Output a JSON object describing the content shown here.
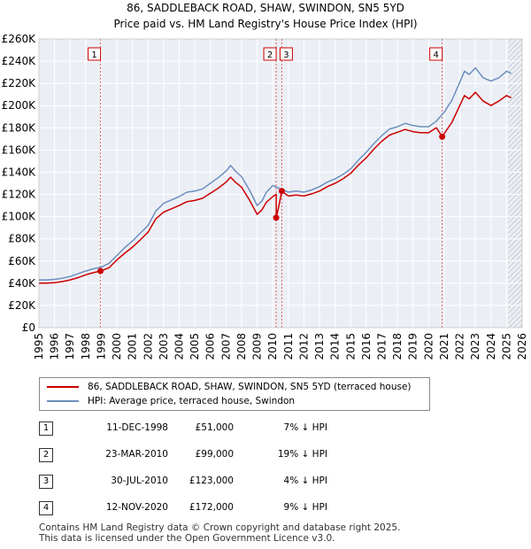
{
  "title": {
    "line1": "86, SADDLEBACK ROAD, SHAW, SWINDON, SN5 5YD",
    "line2": "Price paid vs. HM Land Registry's House Price Index (HPI)"
  },
  "colors": {
    "property": "#cc0000",
    "hpi": "#6c8ebf",
    "plot_bg": "#ebeff5",
    "grid": "#ffffff",
    "marker_line": "#e06060",
    "hatch": "#aaaaaa"
  },
  "chart_data": {
    "type": "line",
    "xlim": [
      1995,
      2026
    ],
    "ylim": [
      0,
      260000
    ],
    "x_ticks": [
      "1995",
      "1996",
      "1997",
      "1998",
      "1999",
      "2000",
      "2001",
      "2002",
      "2003",
      "2004",
      "2005",
      "2006",
      "2007",
      "2008",
      "2009",
      "2010",
      "2011",
      "2012",
      "2013",
      "2014",
      "2015",
      "2016",
      "2017",
      "2018",
      "2019",
      "2020",
      "2021",
      "2022",
      "2023",
      "2024",
      "2025",
      "2026"
    ],
    "y_ticks": [
      {
        "value": 0,
        "label": "£0"
      },
      {
        "value": 20000,
        "label": "£20K"
      },
      {
        "value": 40000,
        "label": "£40K"
      },
      {
        "value": 60000,
        "label": "£60K"
      },
      {
        "value": 80000,
        "label": "£80K"
      },
      {
        "value": 100000,
        "label": "£100K"
      },
      {
        "value": 120000,
        "label": "£120K"
      },
      {
        "value": 140000,
        "label": "£140K"
      },
      {
        "value": 160000,
        "label": "£160K"
      },
      {
        "value": 180000,
        "label": "£180K"
      },
      {
        "value": 200000,
        "label": "£200K"
      },
      {
        "value": 220000,
        "label": "£220K"
      },
      {
        "value": 240000,
        "label": "£240K"
      },
      {
        "value": 260000,
        "label": "£260K"
      }
    ],
    "future_shade_from": 2025.1,
    "series": [
      {
        "name": "HPI: Average price, terraced house, Swindon",
        "color": "#6c8ebf",
        "x": [
          1995.0,
          1995.5,
          1996.0,
          1996.5,
          1997.0,
          1997.5,
          1998.0,
          1998.5,
          1999.0,
          1999.5,
          2000.0,
          2000.5,
          2001.0,
          2001.5,
          2002.0,
          2002.5,
          2003.0,
          2003.5,
          2004.0,
          2004.5,
          2005.0,
          2005.5,
          2006.0,
          2006.5,
          2007.0,
          2007.3,
          2007.6,
          2008.0,
          2008.5,
          2009.0,
          2009.3,
          2009.6,
          2010.0,
          2010.5,
          2011.0,
          2011.5,
          2012.0,
          2012.5,
          2013.0,
          2013.5,
          2014.0,
          2014.5,
          2015.0,
          2015.5,
          2016.0,
          2016.5,
          2017.0,
          2017.5,
          2018.0,
          2018.5,
          2019.0,
          2019.5,
          2020.0,
          2020.5,
          2021.0,
          2021.5,
          2022.0,
          2022.3,
          2022.6,
          2023.0,
          2023.5,
          2024.0,
          2024.5,
          2025.0,
          2025.3
        ],
        "y": [
          43000,
          43000,
          43500,
          44500,
          46000,
          48500,
          51000,
          53000,
          54500,
          58000,
          65000,
          72000,
          78000,
          85000,
          92000,
          105000,
          112000,
          115000,
          118000,
          122000,
          123000,
          125000,
          130000,
          135000,
          141000,
          146000,
          141000,
          136000,
          124000,
          110000,
          114000,
          122000,
          128000,
          125000,
          122000,
          123000,
          122000,
          124000,
          127000,
          131000,
          134000,
          138000,
          143000,
          151000,
          158000,
          166000,
          173000,
          179000,
          181000,
          184000,
          182000,
          181000,
          181000,
          186000,
          194000,
          205000,
          221000,
          231000,
          228000,
          234000,
          225000,
          222000,
          225000,
          231000,
          229000
        ]
      },
      {
        "name": "86, SADDLEBACK ROAD, SHAW, SWINDON, SN5 5YD (terraced house)",
        "color": "#cc0000",
        "x": [
          1995.0,
          1995.5,
          1996.0,
          1996.5,
          1997.0,
          1997.5,
          1998.0,
          1998.5,
          1998.95,
          1999.5,
          2000.0,
          2000.5,
          2001.0,
          2001.5,
          2002.0,
          2002.5,
          2003.0,
          2003.5,
          2004.0,
          2004.5,
          2005.0,
          2005.5,
          2006.0,
          2006.5,
          2007.0,
          2007.3,
          2007.6,
          2008.0,
          2008.5,
          2009.0,
          2009.3,
          2009.6,
          2010.0,
          2010.22,
          2010.22,
          2010.4,
          2010.58,
          2010.58,
          2011.0,
          2011.5,
          2012.0,
          2012.5,
          2013.0,
          2013.5,
          2014.0,
          2014.5,
          2015.0,
          2015.5,
          2016.0,
          2016.5,
          2017.0,
          2017.5,
          2018.0,
          2018.5,
          2019.0,
          2019.5,
          2020.0,
          2020.5,
          2020.87,
          2020.87,
          2021.5,
          2022.0,
          2022.3,
          2022.6,
          2023.0,
          2023.5,
          2024.0,
          2024.5,
          2025.0,
          2025.3
        ],
        "y": [
          40000,
          40000,
          40500,
          41500,
          43000,
          45000,
          47500,
          49500,
          51000,
          54000,
          61000,
          67000,
          72500,
          79000,
          86000,
          98000,
          104000,
          107000,
          110000,
          113500,
          114500,
          116500,
          121000,
          125500,
          131000,
          135500,
          131000,
          126500,
          115000,
          102000,
          106000,
          113000,
          118000,
          120000,
          99000,
          110000,
          123000,
          123000,
          118500,
          119500,
          118500,
          120500,
          123000,
          127000,
          130000,
          134000,
          139000,
          146500,
          153000,
          161000,
          168000,
          173500,
          176000,
          178500,
          176500,
          175500,
          175500,
          180000,
          172000,
          172000,
          185000,
          200000,
          209000,
          206000,
          212000,
          204000,
          200000,
          204000,
          209000,
          207000
        ]
      }
    ],
    "sale_markers": [
      {
        "label": "1",
        "x": 1998.95,
        "y": 51000
      },
      {
        "label": "2",
        "x": 2010.22,
        "y": 99000
      },
      {
        "label": "3",
        "x": 2010.58,
        "y": 123000
      },
      {
        "label": "4",
        "x": 2020.87,
        "y": 172000
      }
    ]
  },
  "legend": {
    "property_label": "86, SADDLEBACK ROAD, SHAW, SWINDON, SN5 5YD (terraced house)",
    "hpi_label": "HPI: Average price, terraced house, Swindon"
  },
  "sales": [
    {
      "num": "1",
      "date": "11-DEC-1998",
      "price": "£51,000",
      "hpi": "7% ↓ HPI"
    },
    {
      "num": "2",
      "date": "23-MAR-2010",
      "price": "£99,000",
      "hpi": "19% ↓ HPI"
    },
    {
      "num": "3",
      "date": "30-JUL-2010",
      "price": "£123,000",
      "hpi": "4% ↓ HPI"
    },
    {
      "num": "4",
      "date": "12-NOV-2020",
      "price": "£172,000",
      "hpi": "9% ↓ HPI"
    }
  ],
  "footer": {
    "line1": "Contains HM Land Registry data © Crown copyright and database right 2025.",
    "line2": "This data is licensed under the Open Government Licence v3.0."
  }
}
